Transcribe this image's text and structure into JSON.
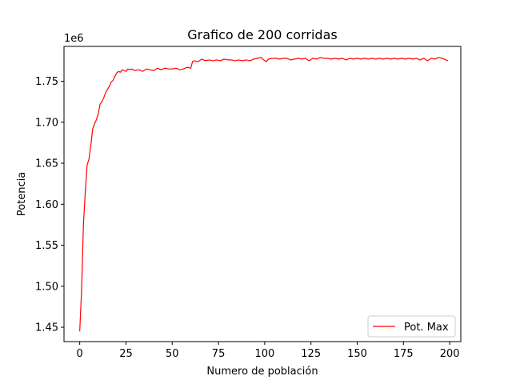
{
  "chart_data": {
    "type": "line",
    "title": "Grafico de 200 corridas",
    "xlabel": "Numero de población",
    "ylabel": "Potencia",
    "y_offset_text": "1e6",
    "xlim": [
      -8.5,
      206
    ],
    "ylim": [
      1.4325,
      1.7925
    ],
    "y_scale_factor": 1000000,
    "x_ticks": [
      0,
      25,
      50,
      75,
      100,
      125,
      150,
      175,
      200
    ],
    "x_tick_labels": [
      "0",
      "25",
      "50",
      "75",
      "100",
      "125",
      "150",
      "175",
      "200"
    ],
    "y_ticks": [
      1.45,
      1.5,
      1.55,
      1.6,
      1.65,
      1.7,
      1.75
    ],
    "y_tick_labels": [
      "1.45",
      "1.50",
      "1.55",
      "1.60",
      "1.65",
      "1.70",
      "1.75"
    ],
    "grid": false,
    "legend_position": "lower-right",
    "series": [
      {
        "name": "Pot. Max",
        "color": "#ff0000",
        "x": [
          0,
          1,
          2,
          3,
          4,
          5,
          6,
          7,
          8,
          9,
          10,
          11,
          12,
          13,
          14,
          15,
          16,
          17,
          18,
          19,
          20,
          21,
          22,
          23,
          24,
          25,
          26,
          27,
          28,
          29,
          30,
          32,
          34,
          36,
          38,
          40,
          42,
          44,
          46,
          48,
          50,
          52,
          54,
          56,
          58,
          60,
          61,
          62,
          64,
          66,
          68,
          70,
          72,
          74,
          76,
          78,
          80,
          82,
          84,
          86,
          88,
          90,
          92,
          94,
          96,
          98,
          100,
          101,
          102,
          104,
          106,
          108,
          110,
          112,
          114,
          116,
          118,
          120,
          122,
          124,
          126,
          128,
          130,
          132,
          134,
          136,
          138,
          140,
          142,
          144,
          146,
          148,
          150,
          152,
          154,
          156,
          158,
          160,
          162,
          164,
          166,
          168,
          170,
          172,
          174,
          176,
          178,
          180,
          182,
          184,
          186,
          188,
          190,
          192,
          194,
          196,
          198,
          199
        ],
        "y": [
          1.445,
          1.495,
          1.575,
          1.615,
          1.648,
          1.655,
          1.672,
          1.692,
          1.698,
          1.703,
          1.71,
          1.722,
          1.725,
          1.73,
          1.736,
          1.74,
          1.744,
          1.749,
          1.751,
          1.756,
          1.76,
          1.762,
          1.761,
          1.764,
          1.763,
          1.762,
          1.765,
          1.764,
          1.765,
          1.764,
          1.763,
          1.764,
          1.762,
          1.765,
          1.764,
          1.763,
          1.766,
          1.764,
          1.766,
          1.765,
          1.765,
          1.766,
          1.764,
          1.765,
          1.767,
          1.766,
          1.774,
          1.775,
          1.774,
          1.777,
          1.775,
          1.776,
          1.775,
          1.776,
          1.775,
          1.777,
          1.776,
          1.776,
          1.775,
          1.776,
          1.775,
          1.776,
          1.775,
          1.777,
          1.778,
          1.779,
          1.775,
          1.774,
          1.777,
          1.778,
          1.778,
          1.777,
          1.778,
          1.778,
          1.776,
          1.777,
          1.778,
          1.777,
          1.778,
          1.775,
          1.778,
          1.777,
          1.779,
          1.778,
          1.778,
          1.777,
          1.778,
          1.777,
          1.778,
          1.776,
          1.778,
          1.777,
          1.778,
          1.777,
          1.778,
          1.777,
          1.778,
          1.777,
          1.778,
          1.777,
          1.778,
          1.777,
          1.778,
          1.777,
          1.778,
          1.777,
          1.778,
          1.777,
          1.778,
          1.776,
          1.778,
          1.775,
          1.778,
          1.777,
          1.779,
          1.778,
          1.776,
          1.775
        ]
      }
    ]
  }
}
